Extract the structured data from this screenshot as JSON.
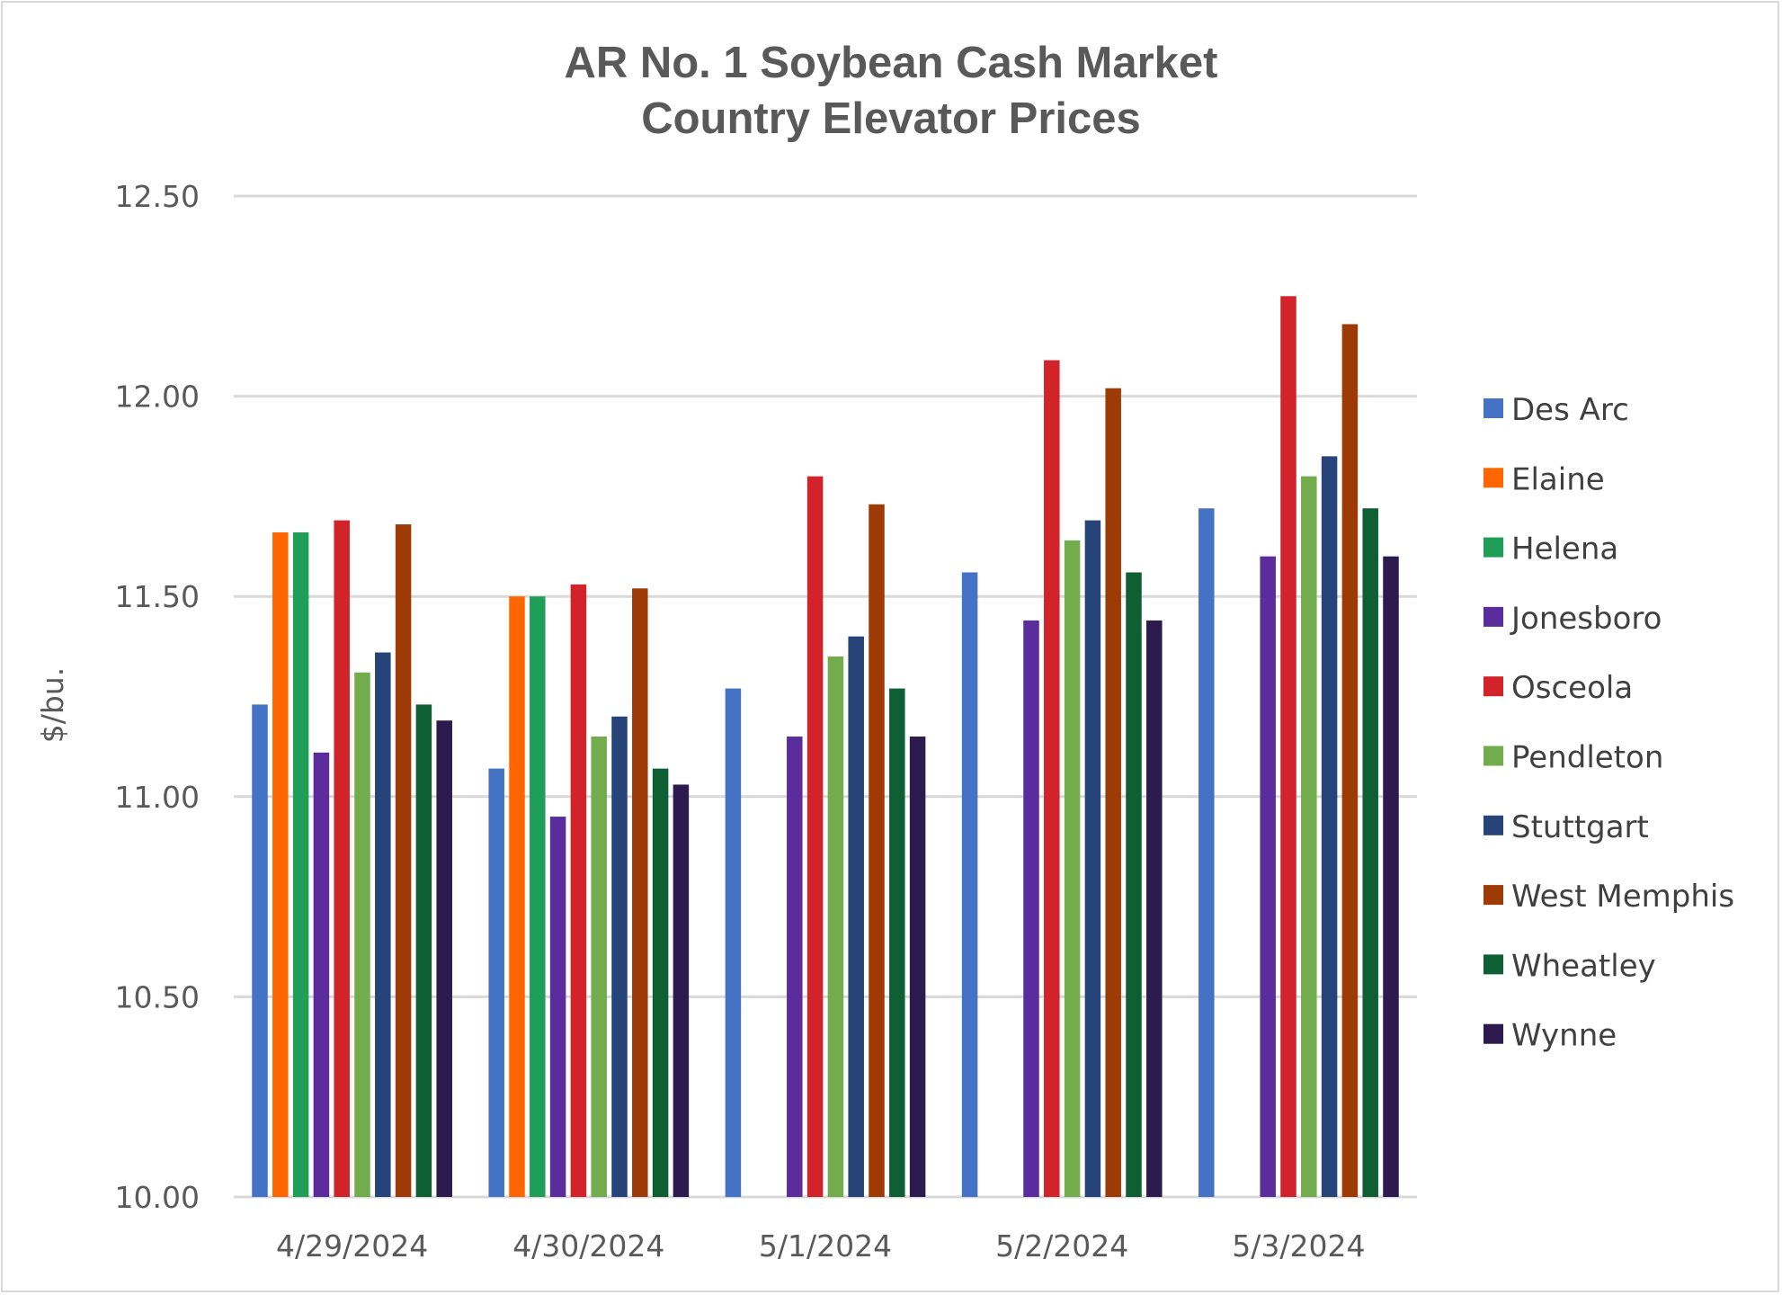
{
  "chart_data": {
    "type": "bar",
    "title": [
      "AR No. 1 Soybean Cash Market",
      "Country Elevator Prices"
    ],
    "xlabel": "",
    "ylabel": "$/bu.",
    "ylim": [
      10.0,
      12.5
    ],
    "ytick_values": [
      10.0,
      10.5,
      11.0,
      11.5,
      12.0,
      12.5
    ],
    "ytick_labels": [
      "10.00",
      "10.50",
      "11.00",
      "11.50",
      "12.00",
      "12.50"
    ],
    "grid": true,
    "legend_position": "right",
    "categories": [
      "4/29/2024",
      "4/30/2024",
      "5/1/2024",
      "5/2/2024",
      "5/3/2024"
    ],
    "series": [
      {
        "name": "Des Arc",
        "color": "#4472c4",
        "values": [
          11.23,
          11.07,
          11.27,
          11.56,
          11.72
        ]
      },
      {
        "name": "Elaine",
        "color": "#ff6600",
        "values": [
          11.66,
          11.5,
          null,
          null,
          null
        ]
      },
      {
        "name": "Helena",
        "color": "#1e9e57",
        "values": [
          11.66,
          11.5,
          null,
          null,
          null
        ]
      },
      {
        "name": "Jonesboro",
        "color": "#5b2c9c",
        "values": [
          11.11,
          10.95,
          11.15,
          11.44,
          11.6
        ]
      },
      {
        "name": "Osceola",
        "color": "#d2232a",
        "values": [
          11.69,
          11.53,
          11.8,
          12.09,
          12.25
        ]
      },
      {
        "name": "Pendleton",
        "color": "#72ac4d",
        "values": [
          11.31,
          11.15,
          11.35,
          11.64,
          11.8
        ]
      },
      {
        "name": "Stuttgart",
        "color": "#264478",
        "values": [
          11.36,
          11.2,
          11.4,
          11.69,
          11.85
        ]
      },
      {
        "name": "West Memphis",
        "color": "#9e3a06",
        "values": [
          11.68,
          11.52,
          11.73,
          12.02,
          12.18
        ]
      },
      {
        "name": "Wheatley",
        "color": "#0f5f35",
        "values": [
          11.23,
          11.07,
          11.27,
          11.56,
          11.72
        ]
      },
      {
        "name": "Wynne",
        "color": "#2d1a4f",
        "values": [
          11.19,
          11.03,
          11.15,
          11.44,
          11.6
        ]
      }
    ]
  }
}
